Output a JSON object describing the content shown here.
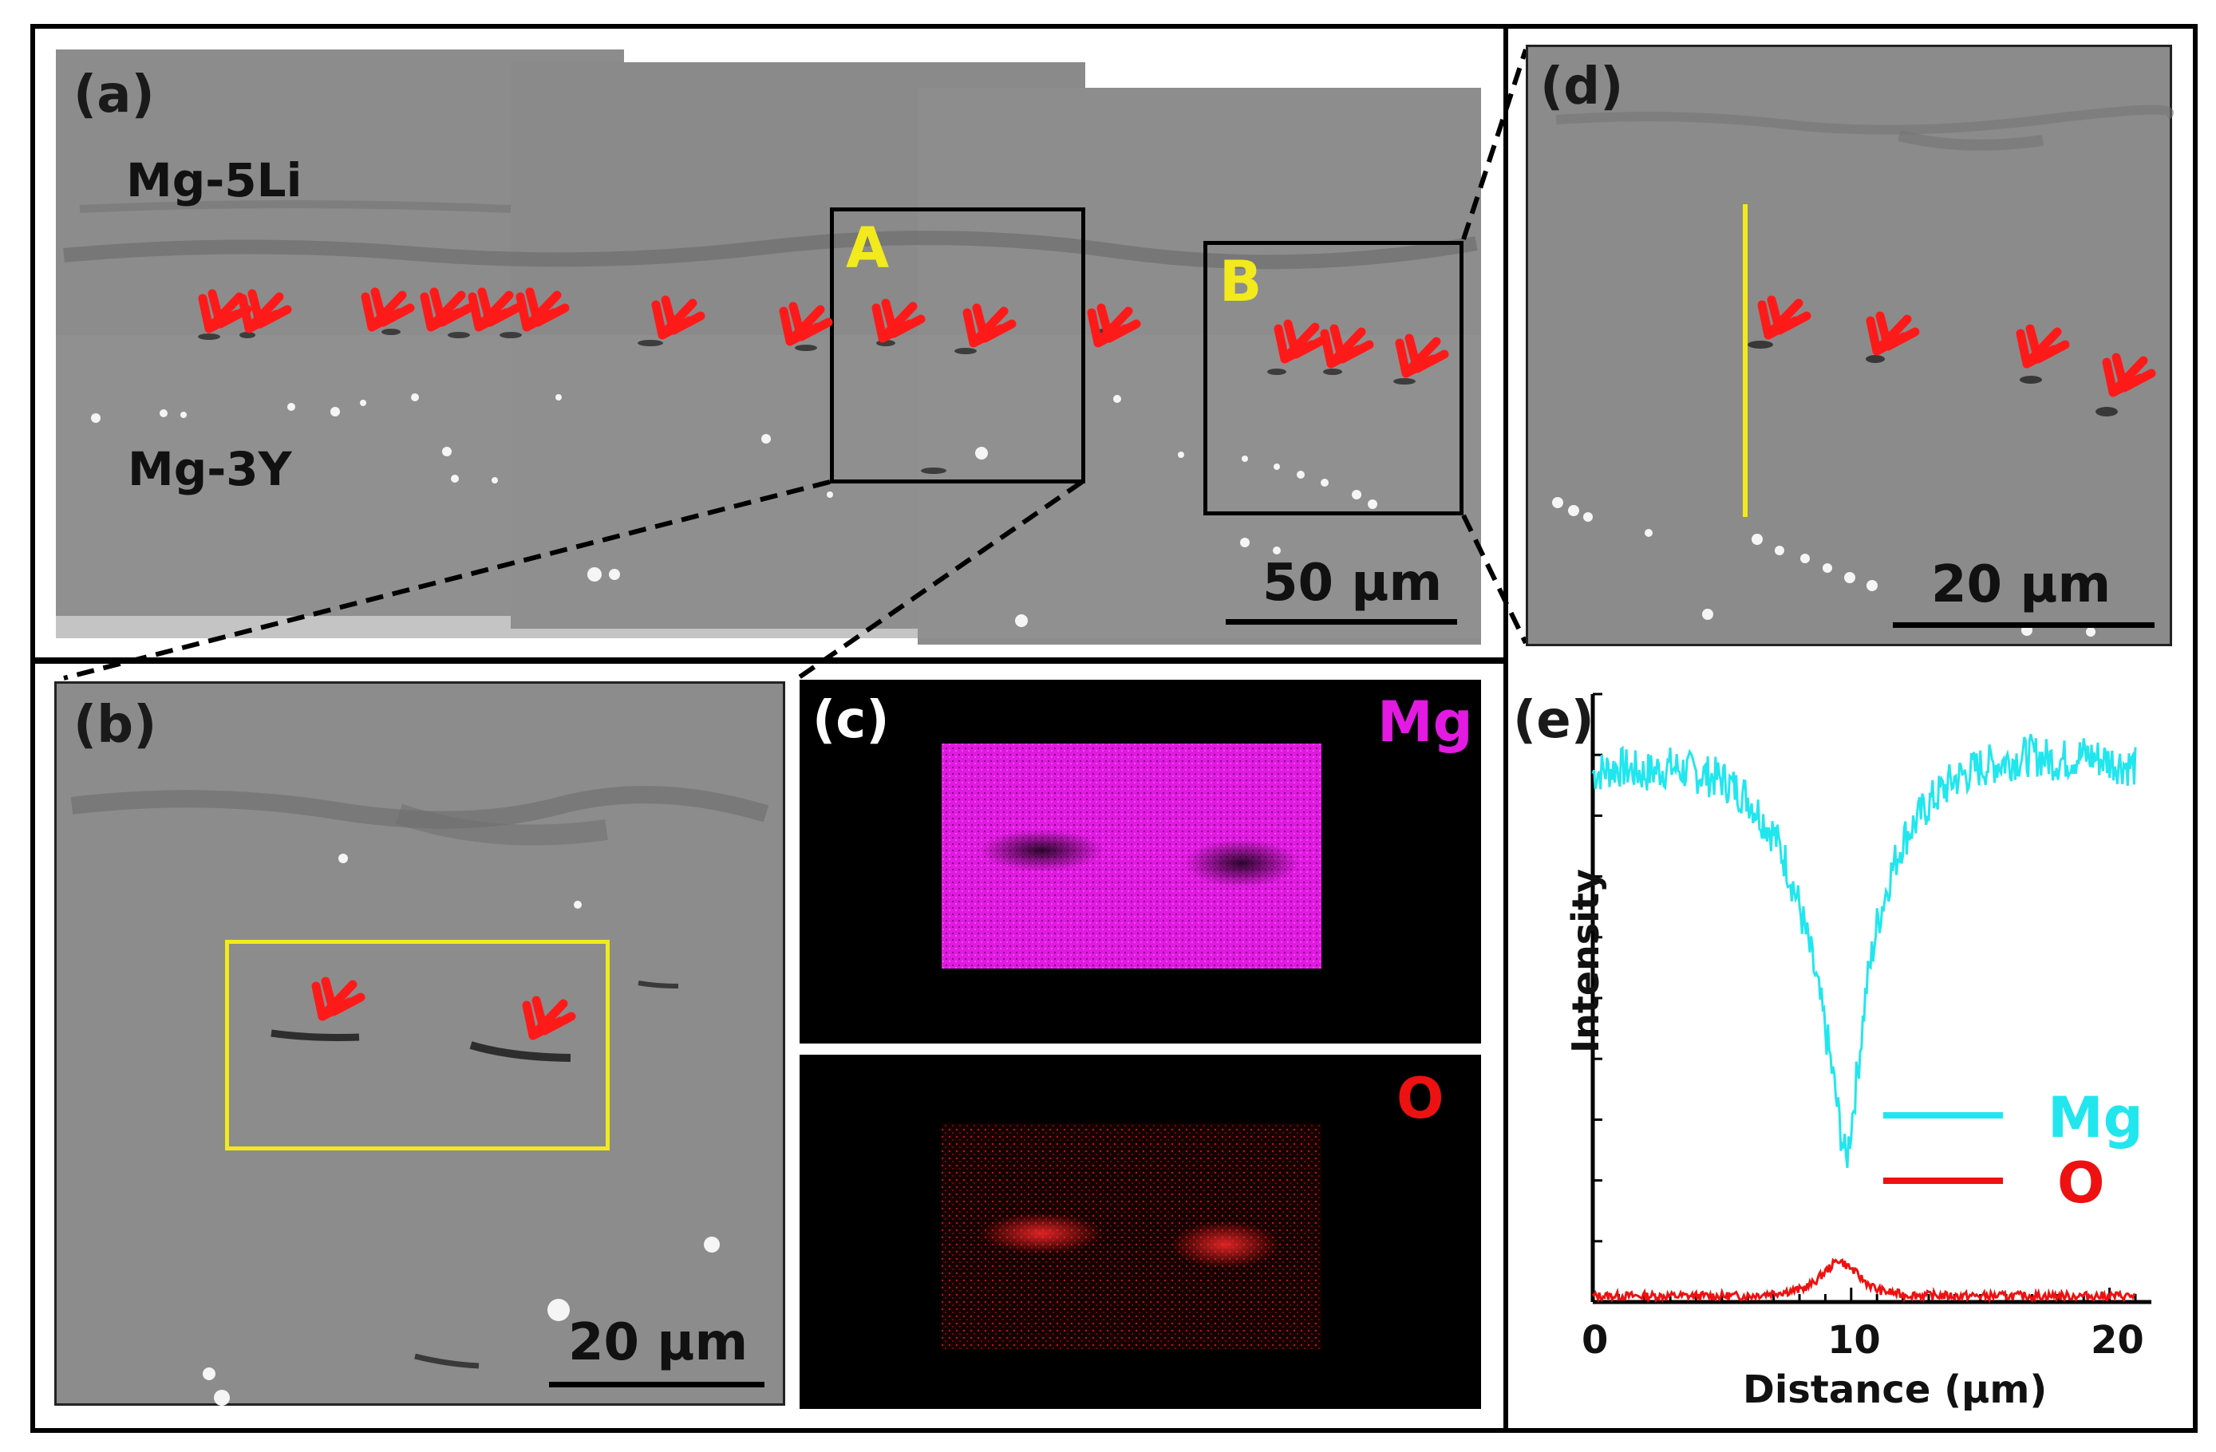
{
  "panels": {
    "a": {
      "label": "(a)",
      "upper_material": "Mg-5Li",
      "lower_material": "Mg-3Y",
      "region_a": "A",
      "region_b": "B",
      "scale": "50 μm"
    },
    "b": {
      "label": "(b)",
      "scale": "20 μm"
    },
    "c": {
      "label": "(c)",
      "element_top": "Mg",
      "element_bottom": "O"
    },
    "d": {
      "label": "(d)",
      "scale": "20 μm"
    },
    "e": {
      "label": "(e)"
    }
  },
  "colors": {
    "arrow": "#ff1a1a",
    "mg": "#22e6ee",
    "o": "#ee1111",
    "mg_map": "#e21ae2",
    "highlight": "#f2ea1c"
  },
  "chart_data": {
    "type": "line",
    "title": "",
    "xlabel": "Distance (μm)",
    "ylabel": "Intensity",
    "xlim": [
      0,
      21
    ],
    "x_ticks": [
      0,
      10,
      20
    ],
    "legend": [
      "Mg",
      "O"
    ],
    "legend_position": "right",
    "series": [
      {
        "name": "Mg",
        "color": "#22e6ee",
        "x": [
          0,
          1,
          2,
          3,
          4,
          5,
          6,
          7,
          7.5,
          8,
          8.5,
          9,
          9.3,
          9.6,
          9.8,
          10,
          10.3,
          10.6,
          11,
          11.5,
          12,
          13,
          14,
          15,
          16,
          17,
          18,
          19,
          20,
          21
        ],
        "y": [
          0.87,
          0.88,
          0.87,
          0.88,
          0.87,
          0.86,
          0.83,
          0.77,
          0.72,
          0.65,
          0.56,
          0.45,
          0.37,
          0.28,
          0.23,
          0.29,
          0.4,
          0.52,
          0.62,
          0.7,
          0.76,
          0.82,
          0.86,
          0.88,
          0.89,
          0.9,
          0.89,
          0.9,
          0.89,
          0.88
        ]
      },
      {
        "name": "O",
        "color": "#ee1111",
        "x": [
          0,
          2,
          4,
          6,
          7,
          8,
          8.5,
          9,
          9.5,
          10,
          10.5,
          11,
          12,
          14,
          16,
          18,
          21
        ],
        "y": [
          0.01,
          0.01,
          0.01,
          0.01,
          0.015,
          0.02,
          0.03,
          0.05,
          0.07,
          0.055,
          0.035,
          0.02,
          0.012,
          0.01,
          0.01,
          0.01,
          0.01
        ]
      }
    ]
  }
}
